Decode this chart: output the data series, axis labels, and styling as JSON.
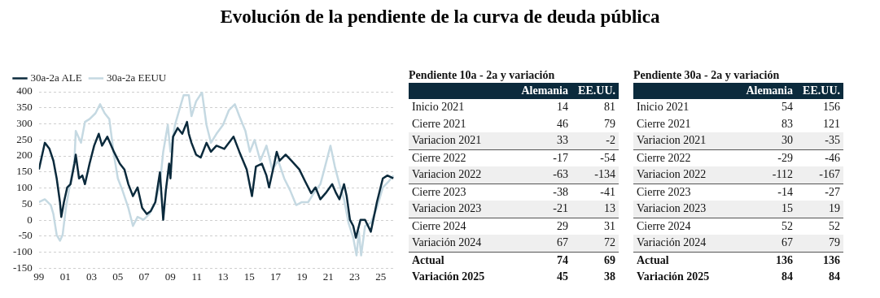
{
  "chart_data": [
    {
      "type": "line",
      "title": "Evolución de la pendiente de la curva de deuda pública",
      "legend": "top left",
      "grid": "y",
      "marker": "none",
      "line_style": "solid",
      "xlim": [
        1999,
        2026
      ],
      "xticks": [
        {
          "value": 1999,
          "label": "99"
        },
        {
          "value": 2001,
          "label": "01"
        },
        {
          "value": 2003,
          "label": "03"
        },
        {
          "value": 2005,
          "label": "05"
        },
        {
          "value": 2007,
          "label": "07"
        },
        {
          "value": 2009,
          "label": "09"
        },
        {
          "value": 2011,
          "label": "11"
        },
        {
          "value": 2013,
          "label": "13"
        },
        {
          "value": 2015,
          "label": "15"
        },
        {
          "value": 2017,
          "label": "17"
        },
        {
          "value": 2019,
          "label": "19"
        },
        {
          "value": 2021,
          "label": "21"
        },
        {
          "value": 2023,
          "label": "23"
        },
        {
          "value": 2025,
          "label": "25"
        }
      ],
      "ylim": [
        -150,
        400
      ],
      "yticks": [
        -150,
        -100,
        -50,
        0,
        50,
        100,
        150,
        200,
        250,
        300,
        350,
        400
      ],
      "series": [
        {
          "name": "30a-2a ALE",
          "color": "#0b2a3c",
          "x": [
            1999,
            1999.45,
            1999.8,
            2000.1,
            2000.35,
            2000.6,
            2000.7,
            2000.9,
            2001.15,
            2001.4,
            2001.7,
            2001.8,
            2002.05,
            2002.3,
            2002.5,
            2002.85,
            2003.2,
            2003.55,
            2003.8,
            2004.2,
            2004.7,
            2005.15,
            2005.5,
            2005.8,
            2006.15,
            2006.5,
            2006.85,
            2007.2,
            2007.5,
            2007.85,
            2008.2,
            2008.45,
            2008.65,
            2008.9,
            2009.0,
            2009.2,
            2009.55,
            2009.9,
            2010.26,
            2010.4,
            2010.6,
            2010.95,
            2011.3,
            2011.74,
            2012.08,
            2012.5,
            2013.1,
            2013.8,
            2014.24,
            2014.8,
            2015.2,
            2015.5,
            2015.95,
            2016.3,
            2016.5,
            2016.85,
            2017.08,
            2017.3,
            2017.76,
            2018.2,
            2018.8,
            2019.24,
            2019.7,
            2020.03,
            2020.4,
            2020.8,
            2021.3,
            2021.6,
            2021.85,
            2022.2,
            2022.4,
            2022.65,
            2022.9,
            2023.1,
            2023.45,
            2023.8,
            2024.24,
            2024.7,
            2025.15,
            2025.5,
            2025.95
          ],
          "values": [
            158,
            241,
            222,
            185,
            130,
            56,
            10,
            56,
            102,
            112,
            176,
            204,
            130,
            139,
            112,
            176,
            232,
            269,
            232,
            260,
            213,
            176,
            158,
            112,
            75,
            102,
            38,
            19,
            28,
            56,
            149,
            1,
            93,
            176,
            130,
            260,
            287,
            269,
            306,
            269,
            241,
            204,
            195,
            241,
            213,
            232,
            222,
            260,
            213,
            158,
            75,
            167,
            176,
            139,
            102,
            167,
            213,
            185,
            204,
            185,
            158,
            121,
            84,
            102,
            65,
            84,
            112,
            84,
            65,
            112,
            75,
            1,
            -18,
            -55,
            1,
            1,
            -36,
            56,
            130,
            139,
            130
          ]
        },
        {
          "name": "30a-2a EEUU",
          "color": "#c5d9e2",
          "x": [
            1999,
            1999.45,
            1999.9,
            2000.1,
            2000.35,
            2000.6,
            2000.8,
            2001.05,
            2001.4,
            2001.7,
            2001.8,
            2002.2,
            2002.5,
            2002.85,
            2003.3,
            2003.65,
            2004.0,
            2004.35,
            2004.7,
            2005.0,
            2005.35,
            2005.8,
            2006.15,
            2006.5,
            2006.95,
            2007.4,
            2007.85,
            2008.2,
            2008.45,
            2008.8,
            2009.0,
            2009.35,
            2009.8,
            2010.0,
            2010.4,
            2010.6,
            2010.95,
            2011.4,
            2011.74,
            2012.08,
            2012.5,
            2013.0,
            2013.45,
            2013.9,
            2014.24,
            2014.7,
            2015.04,
            2015.4,
            2015.83,
            2016.3,
            2016.74,
            2017.2,
            2017.65,
            2018.1,
            2018.56,
            2019.0,
            2019.47,
            2019.9,
            2020.4,
            2020.7,
            2021.17,
            2021.5,
            2021.85,
            2022.2,
            2022.54,
            2022.9,
            2023.15,
            2023.33,
            2023.5,
            2023.8,
            2024.24,
            2024.7,
            2025.15,
            2025.6,
            2025.95
          ],
          "values": [
            56,
            65,
            47,
            19,
            -46,
            -64,
            -46,
            38,
            121,
            185,
            278,
            241,
            306,
            315,
            333,
            361,
            333,
            315,
            204,
            130,
            93,
            38,
            -18,
            10,
            1,
            19,
            56,
            112,
            213,
            297,
            213,
            297,
            361,
            389,
            389,
            324,
            370,
            398,
            297,
            241,
            269,
            297,
            343,
            361,
            324,
            278,
            213,
            250,
            185,
            232,
            158,
            185,
            130,
            93,
            47,
            56,
            56,
            84,
            112,
            158,
            232,
            167,
            112,
            65,
            -8,
            -55,
            -110,
            -36,
            -110,
            -18,
            -8,
            38,
            102,
            121,
            139
          ]
        }
      ]
    },
    {
      "type": "other",
      "title": "Pendiente 10a - 2a y variación",
      "data_labels": true,
      "categories": [
        "Inicio 2021",
        "Cierre 2021",
        "Variacion 2021",
        "Cierre 2022",
        "Variacion 2022",
        "Cierre 2023",
        "Variacion 2023",
        "Cierre 2024",
        "Variación 2024",
        "Actual",
        "Variación 2025"
      ],
      "series": [
        {
          "name": "Alemania",
          "values": [
            14,
            46,
            33,
            -17,
            -63,
            -38,
            -21,
            29,
            67,
            74,
            45
          ]
        },
        {
          "name": "EE.UU.",
          "values": [
            81,
            79,
            -2,
            -54,
            -134,
            -41,
            13,
            31,
            72,
            69,
            38
          ]
        }
      ]
    },
    {
      "type": "other",
      "title": "Pendiente 30a - 2a y variación",
      "data_labels": true,
      "categories": [
        "Inicio 2021",
        "Cierre 2021",
        "Variacion 2021",
        "Cierre 2022",
        "Variacion 2022",
        "Cierre 2023",
        "Variacion 2023",
        "Cierre 2024",
        "Variación 2024",
        "Actual",
        "Variación 2025"
      ],
      "series": [
        {
          "name": "Alemania",
          "values": [
            54,
            83,
            30,
            -29,
            -112,
            -14,
            15,
            52,
            67,
            136,
            84
          ]
        },
        {
          "name": "EE.UU.",
          "values": [
            156,
            121,
            -35,
            -46,
            -167,
            -27,
            19,
            52,
            79,
            136,
            84
          ]
        }
      ]
    }
  ]
}
